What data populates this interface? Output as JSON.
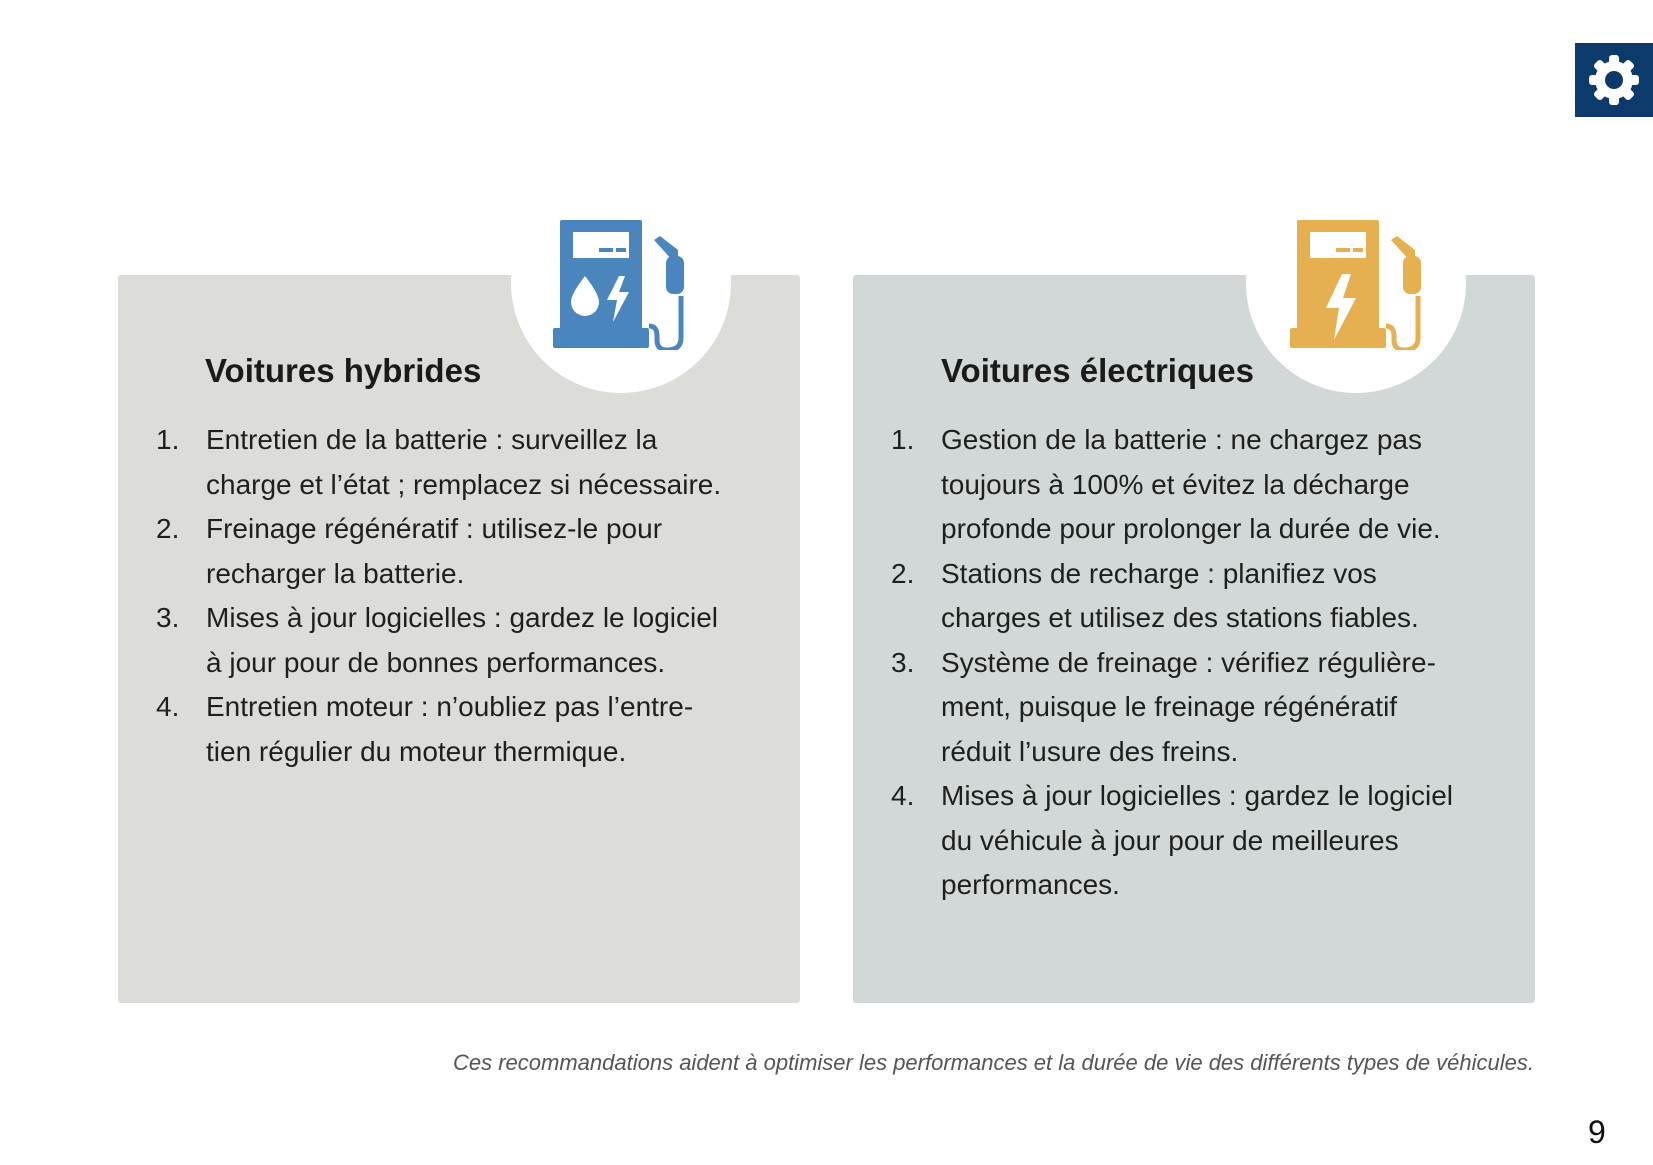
{
  "header": {
    "settings_icon": "gear-icon",
    "accent_color": "#0b3a6b"
  },
  "cards": [
    {
      "title": "Voitures hybrides",
      "icon": "fuel-pump-drop-lightning-icon",
      "icon_color": "#4a86bd",
      "items": [
        {
          "num": "1.",
          "text": "Entretien de la batterie : surveillez la charge et l’état ; remplacez si nécessaire."
        },
        {
          "num": "2.",
          "text": "Freinage régénératif : utilisez-le pour recharger la batterie."
        },
        {
          "num": "3.",
          "text": "Mises à jour logicielles : gardez le logiciel à jour pour de bonnes performances."
        },
        {
          "num": "4.",
          "text": "Entretien moteur : n’oubliez pas l’entre­tien régulier du moteur thermique."
        }
      ]
    },
    {
      "title": "Voitures électriques",
      "icon": "ev-charging-pump-icon",
      "icon_color": "#e6b050",
      "items": [
        {
          "num": "1.",
          "text": "Gestion de la batterie : ne chargez pas toujours à 100% et évitez la décharge profonde pour prolonger la durée de vie."
        },
        {
          "num": "2.",
          "text": "Stations de recharge : planifiez vos charges et utilisez des stations fiables."
        },
        {
          "num": "3.",
          "text": "Système de freinage : vérifiez régulière­ment, puisque le freinage régénératif réduit l’usure des freins."
        },
        {
          "num": "4.",
          "text": "Mises à jour logicielles : gardez le logi­ciel du véhicule à jour pour de meilleures performances."
        }
      ]
    }
  ],
  "footer": "Ces recommandations aident à optimiser les performances et la durée de vie des différents types de véhicules.",
  "page_number": "9"
}
